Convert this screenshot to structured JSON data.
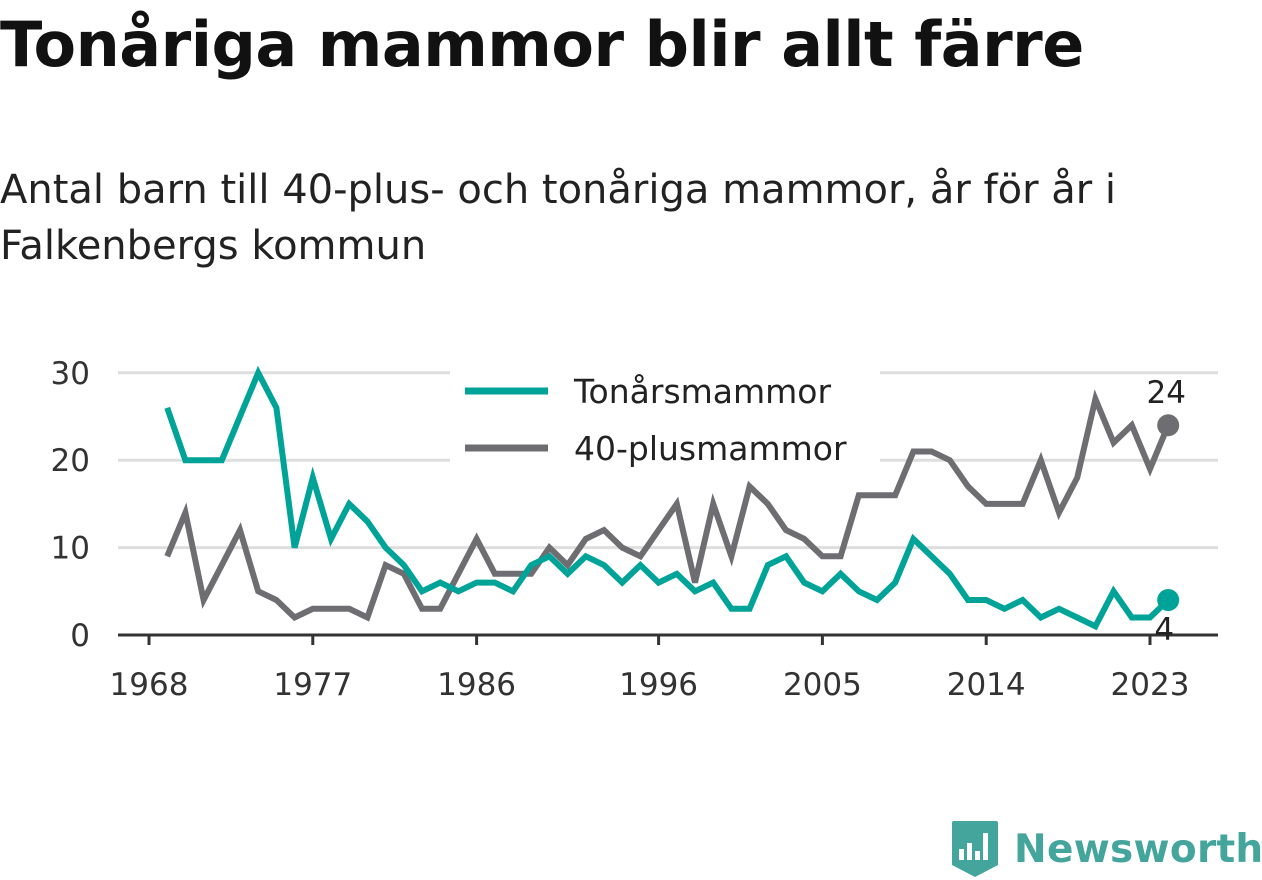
{
  "title": "Tonåriga mammor blir allt färre",
  "subtitle": "Antal barn till 40-plus- och tonåriga mammor, år för år i Falkenbergs kommun",
  "brand": {
    "name": "Newsworthy",
    "color": "#43a59c",
    "icon": "newsworthy-logo-icon"
  },
  "chart_data": {
    "type": "line",
    "xlim": [
      1967,
      2027
    ],
    "ylim": [
      0,
      31
    ],
    "x_ticks": [
      1968,
      1977,
      1986,
      1996,
      2005,
      2014,
      2023
    ],
    "y_ticks": [
      0,
      10,
      20,
      30
    ],
    "grid": true,
    "legend_position": "top-center",
    "x": [
      1969,
      1970,
      1971,
      1972,
      1973,
      1974,
      1975,
      1976,
      1977,
      1978,
      1979,
      1980,
      1981,
      1982,
      1983,
      1984,
      1985,
      1986,
      1987,
      1988,
      1989,
      1990,
      1991,
      1992,
      1993,
      1994,
      1995,
      1996,
      1997,
      1998,
      1999,
      2000,
      2001,
      2002,
      2003,
      2004,
      2005,
      2006,
      2007,
      2008,
      2009,
      2010,
      2011,
      2012,
      2013,
      2014,
      2015,
      2016,
      2017,
      2018,
      2019,
      2020,
      2021,
      2022,
      2023,
      2024
    ],
    "series": [
      {
        "name": "Tonårsmammor",
        "color": "#00a398",
        "end_label": "4",
        "values": [
          26,
          20,
          20,
          20,
          25,
          30,
          26,
          10,
          18,
          11,
          15,
          13,
          10,
          8,
          5,
          6,
          5,
          6,
          6,
          5,
          8,
          9,
          7,
          9,
          8,
          6,
          8,
          6,
          7,
          5,
          6,
          3,
          3,
          8,
          9,
          6,
          5,
          7,
          5,
          4,
          6,
          11,
          9,
          7,
          4,
          4,
          3,
          4,
          2,
          3,
          2,
          1,
          5,
          2,
          2,
          4
        ]
      },
      {
        "name": "40-plusmammor",
        "color": "#6e6d72",
        "end_label": "24",
        "values": [
          9,
          14,
          4,
          8,
          12,
          5,
          4,
          2,
          3,
          3,
          3,
          2,
          8,
          7,
          3,
          3,
          7,
          11,
          7,
          7,
          7,
          10,
          8,
          11,
          12,
          10,
          9,
          12,
          15,
          6,
          15,
          9,
          17,
          15,
          12,
          11,
          9,
          9,
          16,
          16,
          16,
          21,
          21,
          20,
          17,
          15,
          15,
          15,
          20,
          14,
          18,
          27,
          22,
          24,
          19,
          24
        ]
      }
    ]
  }
}
